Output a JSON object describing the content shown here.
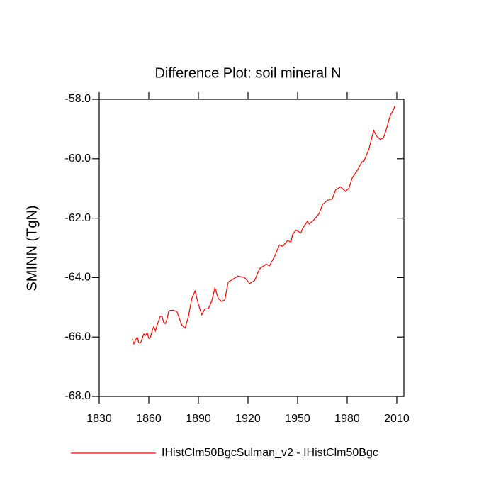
{
  "chart_data": {
    "type": "line",
    "title": "Difference Plot: soil mineral N",
    "y_label": "SMINN  (TgN)",
    "xlim": [
      1830,
      2014.3
    ],
    "xticks": [
      1830,
      1860,
      1890,
      1920,
      1950,
      1980,
      2010
    ],
    "ylim": [
      -68,
      -58
    ],
    "yticks": [
      {
        "value": -68,
        "label": "-68.0"
      },
      {
        "value": -66,
        "label": "-66.0"
      },
      {
        "value": -64,
        "label": "-64.0"
      },
      {
        "value": -62,
        "label": "-62.0"
      },
      {
        "value": -60,
        "label": "-60.0"
      },
      {
        "value": -58,
        "label": "-58.0"
      }
    ],
    "series": [
      {
        "name": "IHistClm50BgcSulman_v2 - IHistClm50Bgc",
        "color": "#ff0000",
        "x": [
          1850,
          1851,
          1852,
          1853,
          1854,
          1855,
          1856,
          1857,
          1858,
          1859,
          1860,
          1861,
          1862,
          1863,
          1864,
          1865,
          1866,
          1867,
          1868,
          1869,
          1870,
          1871,
          1872,
          1873,
          1875,
          1877,
          1879,
          1880,
          1882,
          1884,
          1886,
          1888,
          1890,
          1892,
          1894,
          1896,
          1898,
          1900,
          1902,
          1904,
          1906,
          1908,
          1911,
          1914,
          1918,
          1921,
          1924,
          1927,
          1931,
          1933,
          1936,
          1939,
          1941,
          1944,
          1946,
          1947,
          1949,
          1952,
          1953,
          1956,
          1957,
          1960,
          1963,
          1965,
          1968,
          1971,
          1973,
          1976,
          1979,
          1981,
          1983,
          1986,
          1989,
          1990,
          1993,
          1996,
          1998,
          2000,
          2002,
          2004,
          2006,
          2008,
          2009
        ],
        "values": [
          -66.07,
          -66.23,
          -66.1,
          -66.0,
          -66.2,
          -66.2,
          -66.05,
          -65.9,
          -65.95,
          -65.85,
          -66.05,
          -66.0,
          -65.8,
          -65.65,
          -65.8,
          -65.6,
          -65.45,
          -65.3,
          -65.3,
          -65.5,
          -65.55,
          -65.4,
          -65.15,
          -65.1,
          -65.1,
          -65.15,
          -65.45,
          -65.6,
          -65.7,
          -65.3,
          -64.7,
          -64.45,
          -64.9,
          -65.25,
          -65.05,
          -65.05,
          -64.8,
          -64.35,
          -64.7,
          -64.8,
          -64.75,
          -64.15,
          -64.05,
          -63.95,
          -64.0,
          -64.2,
          -64.1,
          -63.7,
          -63.55,
          -63.6,
          -63.3,
          -62.9,
          -62.95,
          -62.75,
          -62.8,
          -62.55,
          -62.4,
          -62.5,
          -62.35,
          -62.1,
          -62.2,
          -62.05,
          -61.85,
          -61.55,
          -61.4,
          -61.35,
          -61.05,
          -60.95,
          -61.1,
          -61.0,
          -60.65,
          -60.4,
          -60.1,
          -60.1,
          -59.7,
          -59.05,
          -59.25,
          -59.35,
          -59.3,
          -58.95,
          -58.55,
          -58.35,
          -58.2
        ]
      }
    ]
  }
}
